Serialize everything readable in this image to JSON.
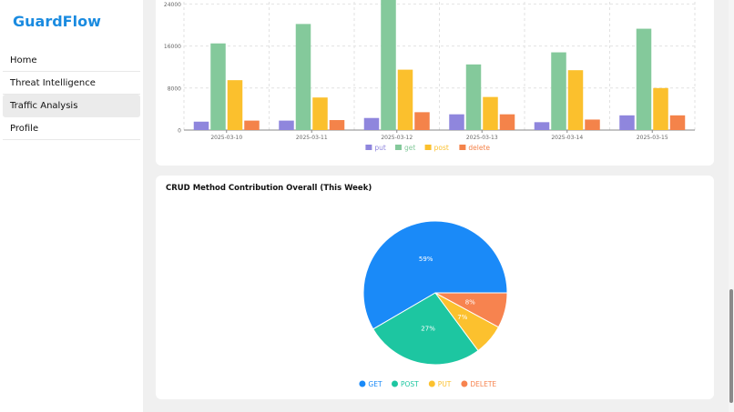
{
  "app": {
    "brand": "GuardFlow"
  },
  "nav": [
    {
      "label": "Home",
      "active": false
    },
    {
      "label": "Threat Intelligence",
      "active": false
    },
    {
      "label": "Traffic Analysis",
      "active": true
    },
    {
      "label": "Profile",
      "active": false
    }
  ],
  "chart_data": [
    {
      "type": "bar",
      "title": "",
      "categories": [
        "2025-03-10",
        "2025-03-11",
        "2025-03-12",
        "2025-03-13",
        "2025-03-14",
        "2025-03-15"
      ],
      "series": [
        {
          "name": "put",
          "color": "#8f86dd",
          "values": [
            1600,
            1800,
            2300,
            3000,
            1500,
            2800
          ]
        },
        {
          "name": "get",
          "color": "#84c99b",
          "values": [
            16500,
            20200,
            27500,
            12500,
            14800,
            19300
          ]
        },
        {
          "name": "post",
          "color": "#fbc02d",
          "values": [
            9500,
            6200,
            11500,
            6300,
            11400,
            8000
          ]
        },
        {
          "name": "delete",
          "color": "#f4834a",
          "values": [
            1800,
            1900,
            3400,
            3000,
            2000,
            2800
          ]
        }
      ],
      "y_ticks": [
        "0",
        "8000",
        "16000",
        "24000"
      ],
      "ylim": [
        0,
        26500
      ],
      "legend": "bottom",
      "grid": true
    },
    {
      "type": "pie",
      "title": "CRUD Method Contribution Overall (This Week)",
      "slices": [
        {
          "name": "GET",
          "value": 59,
          "label": "59%",
          "color": "#1a8af8"
        },
        {
          "name": "POST",
          "value": 27,
          "label": "27%",
          "color": "#1dc6a1"
        },
        {
          "name": "PUT",
          "value": 7,
          "label": "7%",
          "color": "#fcc12e"
        },
        {
          "name": "DELETE",
          "value": 8,
          "label": "8%",
          "color": "#f7834f"
        }
      ],
      "start_angle_deg": 0,
      "legend": "bottom"
    }
  ]
}
